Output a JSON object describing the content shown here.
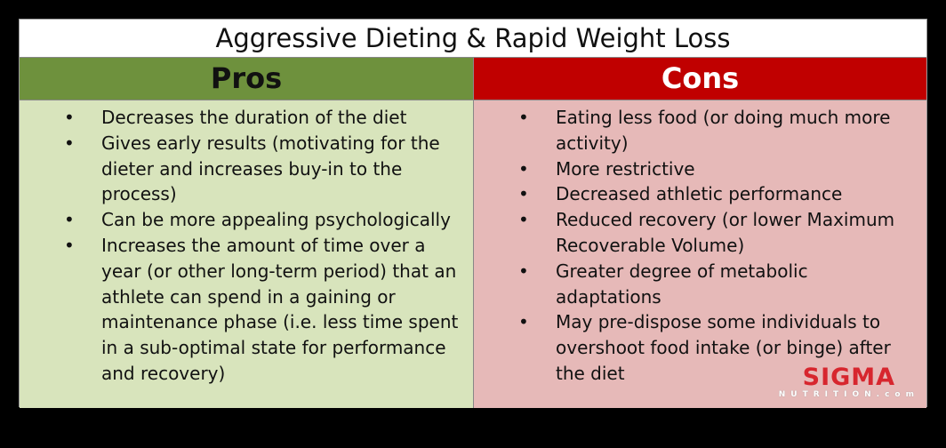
{
  "title": "Aggressive Dieting & Rapid Weight Loss",
  "pros": {
    "heading": "Pros",
    "items": [
      "Decreases the duration of the diet",
      "Gives early results (motivating for the dieter and increases buy-in to the process)",
      "Can be more appealing psychologically",
      "Increases the amount of time over a year (or other long-term period) that an athlete can spend in a gaining or maintenance phase (i.e. less time spent in a sub-optimal state for performance and recovery)"
    ]
  },
  "cons": {
    "heading": "Cons",
    "items": [
      "Eating less food (or doing much more activity)",
      "More restrictive",
      "Decreased athletic performance",
      "Reduced recovery (or lower Maximum Recoverable Volume)",
      "Greater degree of metabolic adaptations",
      "May pre-dispose some individuals to overshoot food intake (or binge) after the diet"
    ]
  },
  "logo": {
    "name": "SIGMA",
    "sub": "NUTRITION.com"
  },
  "colors": {
    "pros_header": "#6e913d",
    "pros_body": "#d8e4bc",
    "cons_header": "#c00000",
    "cons_body": "#e6b9b8"
  }
}
